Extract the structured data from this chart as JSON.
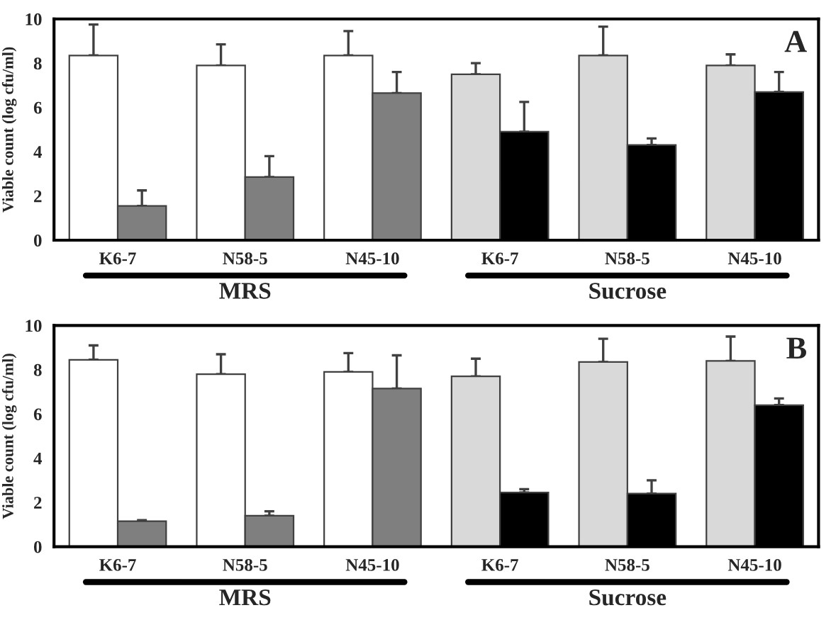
{
  "chart_data": [
    {
      "type": "bar",
      "title": "A",
      "ylabel": "Viable count (log cfu/ml)",
      "categories": [
        "K6-7",
        "N58-5",
        "N45-10",
        "K6-7",
        "N58-5",
        "N45-10"
      ],
      "series": [
        {
          "colors": [
            "#ffffff",
            "#ffffff",
            "#ffffff",
            "#d9d9d9",
            "#d9d9d9",
            "#d9d9d9"
          ],
          "values": [
            8.35,
            7.9,
            8.35,
            7.5,
            8.35,
            7.9
          ],
          "errors": [
            [
              8.35,
              9.75
            ],
            [
              7.9,
              8.85
            ],
            [
              8.35,
              9.45
            ],
            [
              7.5,
              8.0
            ],
            [
              8.35,
              9.65
            ],
            [
              7.9,
              8.4
            ]
          ]
        },
        {
          "colors": [
            "#7f7f7f",
            "#7f7f7f",
            "#7f7f7f",
            "#000000",
            "#000000",
            "#000000"
          ],
          "values": [
            1.55,
            2.85,
            6.65,
            4.9,
            4.3,
            6.7
          ],
          "errors": [
            [
              1.55,
              2.25
            ],
            [
              2.85,
              3.8
            ],
            [
              6.65,
              7.6
            ],
            [
              4.9,
              6.25
            ],
            [
              4.3,
              4.6
            ],
            [
              6.7,
              7.6
            ]
          ]
        }
      ],
      "ylim": [
        0,
        10
      ],
      "yticks": [
        0,
        2,
        4,
        6,
        8,
        10
      ],
      "grid": false,
      "annotations": [
        "MRS",
        "Sucrose"
      ]
    },
    {
      "type": "bar",
      "title": "B",
      "ylabel": "Viable count (log cfu/ml)",
      "categories": [
        "K6-7",
        "N58-5",
        "N45-10",
        "K6-7",
        "N58-5",
        "N45-10"
      ],
      "series": [
        {
          "colors": [
            "#ffffff",
            "#ffffff",
            "#ffffff",
            "#d9d9d9",
            "#d9d9d9",
            "#d9d9d9"
          ],
          "values": [
            8.45,
            7.8,
            7.9,
            7.7,
            8.35,
            8.4
          ],
          "errors": [
            [
              8.45,
              9.1
            ],
            [
              7.8,
              8.7
            ],
            [
              7.9,
              8.75
            ],
            [
              7.7,
              8.5
            ],
            [
              8.35,
              9.4
            ],
            [
              8.4,
              9.5
            ]
          ]
        },
        {
          "colors": [
            "#7f7f7f",
            "#7f7f7f",
            "#7f7f7f",
            "#000000",
            "#000000",
            "#000000"
          ],
          "values": [
            1.15,
            1.4,
            7.15,
            2.45,
            2.4,
            6.4
          ],
          "errors": [
            [
              1.15,
              1.2
            ],
            [
              1.4,
              1.6
            ],
            [
              7.15,
              8.65
            ],
            [
              2.45,
              2.6
            ],
            [
              2.4,
              3.0
            ],
            [
              6.4,
              6.7
            ]
          ]
        }
      ],
      "ylim": [
        0,
        10
      ],
      "yticks": [
        0,
        2,
        4,
        6,
        8,
        10
      ],
      "grid": false,
      "annotations": [
        "MRS",
        "Sucrose"
      ]
    }
  ]
}
